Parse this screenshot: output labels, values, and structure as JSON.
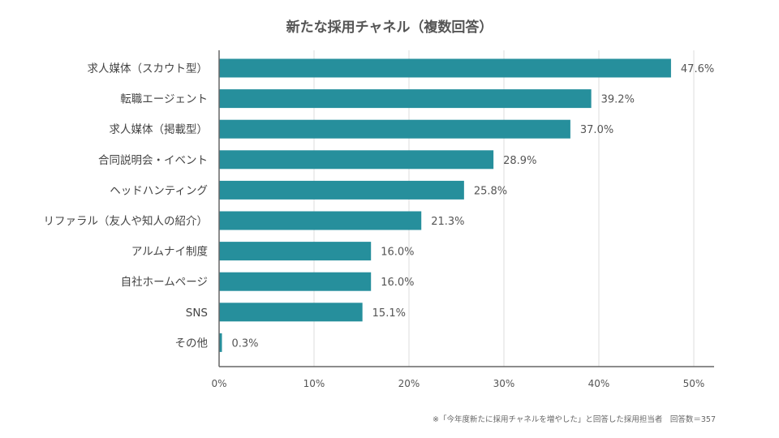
{
  "chart_data": {
    "type": "bar",
    "orientation": "horizontal",
    "title": "新たな採用チャネル（複数回答）",
    "categories": [
      "求人媒体（スカウト型）",
      "転職エージェント",
      "求人媒体（掲載型）",
      "合同説明会・イベント",
      "ヘッドハンティング",
      "リファラル（友人や知人の紹介）",
      "アルムナイ制度",
      "自社ホームページ",
      "SNS",
      "その他"
    ],
    "values": [
      47.6,
      39.2,
      37.0,
      28.9,
      25.8,
      21.3,
      16.0,
      16.0,
      15.1,
      0.3
    ],
    "value_labels": [
      "47.6%",
      "39.2%",
      "37.0%",
      "28.9%",
      "25.8%",
      "21.3%",
      "16.0%",
      "16.0%",
      "15.1%",
      "0.3%"
    ],
    "xlim": [
      0,
      50
    ],
    "ticks": [
      0,
      10,
      20,
      30,
      40,
      50
    ],
    "tick_labels": [
      "0%",
      "10%",
      "20%",
      "30%",
      "40%",
      "50%"
    ],
    "grid": true,
    "bar_color": "#268f9c",
    "grid_color": "#dddddd",
    "axis_color": "#666666"
  },
  "footnote": "※「今年度新たに採用チャネルを増やした」と回答した採用担当者　回答数＝357"
}
